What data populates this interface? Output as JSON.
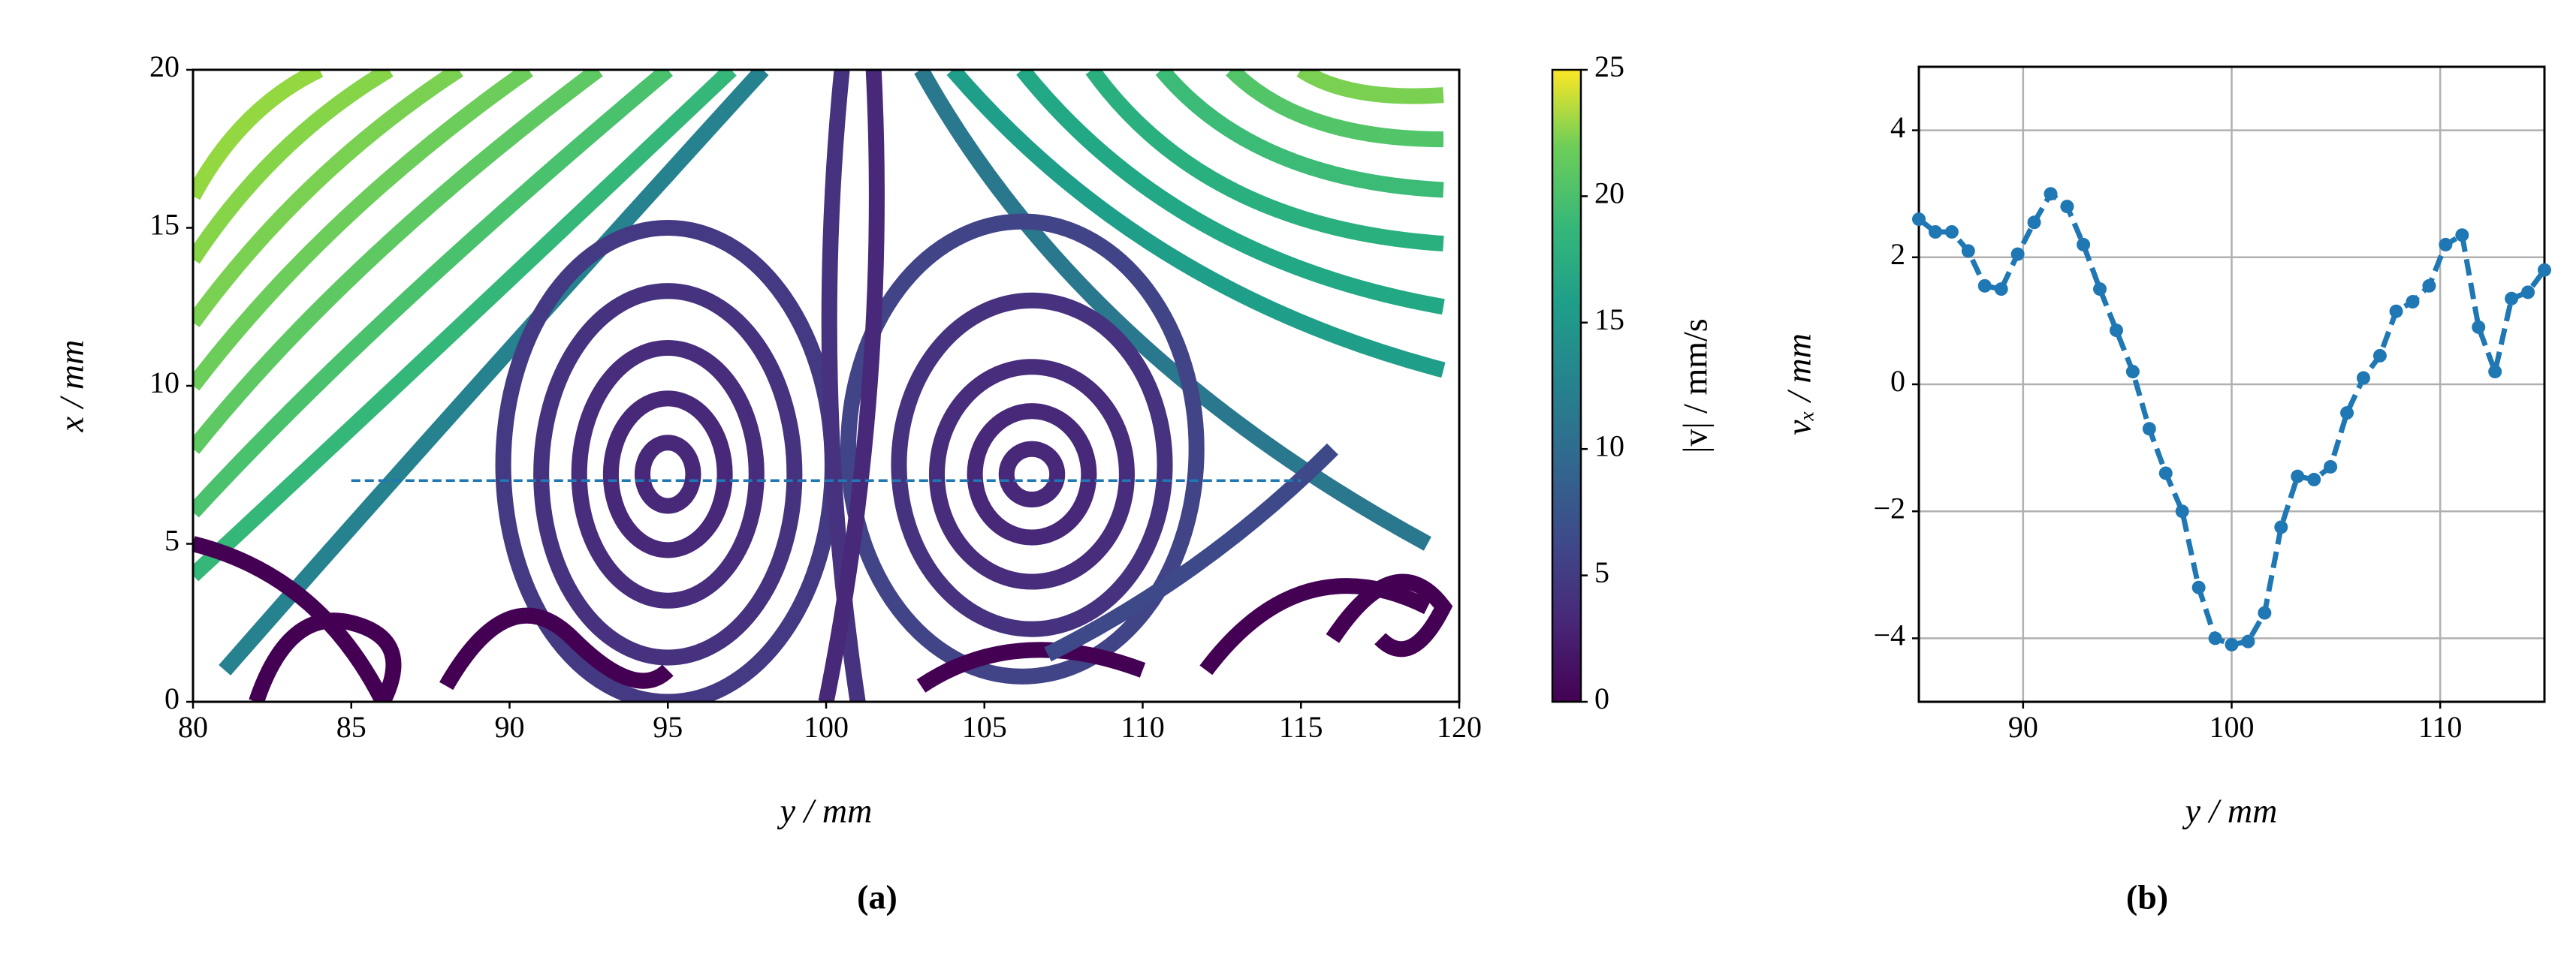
{
  "chart_data": [
    {
      "type": "streamplot",
      "x_label": "y / mm",
      "y_label": "x / mm",
      "panel_label": "(a)",
      "xlim": [
        80,
        120
      ],
      "xticks": [
        80,
        85,
        90,
        95,
        100,
        105,
        110,
        115,
        120
      ],
      "ylim": [
        0,
        20
      ],
      "yticks": [
        0,
        5,
        10,
        15,
        20
      ],
      "profile_line": {
        "y": [
          85,
          115
        ],
        "x": 7,
        "color": "#1f77b4"
      },
      "colorbar": {
        "label": "|v| / mm/s",
        "lim": [
          0,
          25
        ],
        "ticks": [
          0,
          5,
          10,
          15,
          20,
          25
        ]
      }
    },
    {
      "type": "line",
      "x_label": "y / mm",
      "y_label": "vₓ / mm",
      "panel_label": "(b)",
      "xlim": [
        85,
        115
      ],
      "xticks": [
        90,
        100,
        110
      ],
      "ylim": [
        -5,
        5
      ],
      "yticks": [
        {
          "value": -4,
          "label": "−4"
        },
        {
          "value": -2,
          "label": "−2"
        },
        0,
        2,
        4
      ],
      "grid": true,
      "x": [
        85,
        85.79,
        86.58,
        87.37,
        88.16,
        88.95,
        89.74,
        90.53,
        91.32,
        92.11,
        92.89,
        93.68,
        94.47,
        95.26,
        96.05,
        96.84,
        97.63,
        98.42,
        99.21,
        100,
        100.79,
        101.58,
        102.37,
        103.16,
        103.95,
        104.74,
        105.53,
        106.32,
        107.11,
        107.89,
        108.68,
        109.47,
        110.26,
        111.05,
        111.84,
        112.63,
        113.42,
        114.21,
        115
      ],
      "series": [
        {
          "color": "#1f77b4",
          "values": [
            2.6,
            2.4,
            2.4,
            2.1,
            1.55,
            1.5,
            2.05,
            2.55,
            3.0,
            2.8,
            2.2,
            1.5,
            0.85,
            0.2,
            -0.7,
            -1.4,
            -2.0,
            -3.2,
            -4.0,
            -4.1,
            -4.05,
            -3.6,
            -2.25,
            -1.45,
            -1.5,
            -1.3,
            -0.45,
            0.1,
            0.45,
            1.15,
            1.3,
            1.55,
            2.2,
            2.35,
            0.9,
            0.2,
            1.35,
            1.45,
            1.8
          ]
        }
      ]
    }
  ]
}
